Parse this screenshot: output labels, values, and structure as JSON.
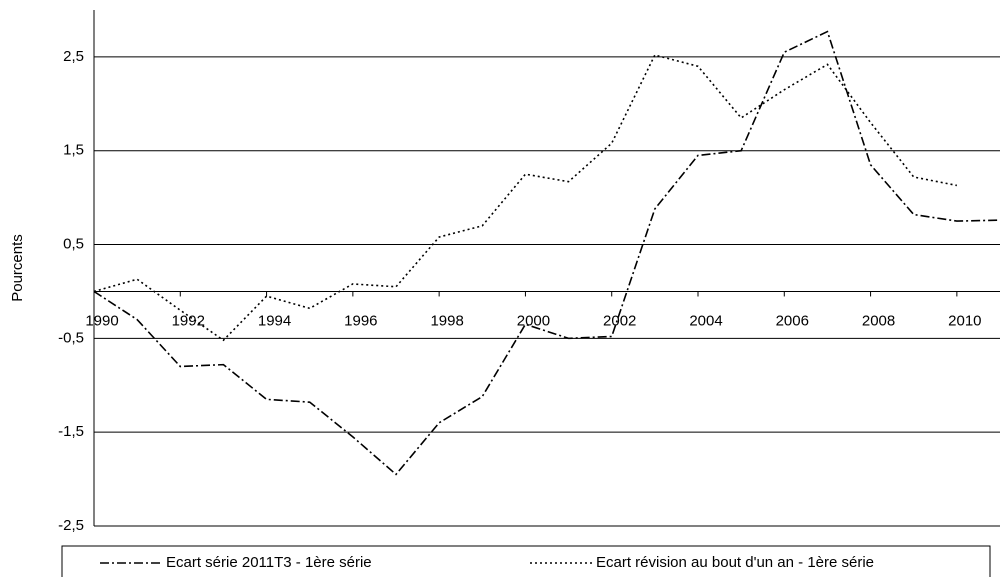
{
  "chart_data": {
    "type": "line",
    "y_label": "Pourcents",
    "x": [
      1990,
      1991,
      1992,
      1993,
      1994,
      1995,
      1996,
      1997,
      1998,
      1999,
      2000,
      2001,
      2002,
      2003,
      2004,
      2005,
      2006,
      2007,
      2008,
      2009,
      2010,
      2011
    ],
    "xlim": [
      1990,
      2011
    ],
    "xticks": [
      1990,
      1992,
      1994,
      1996,
      1998,
      2000,
      2002,
      2004,
      2006,
      2008,
      2010
    ],
    "ylim": [
      -2.5,
      3.0
    ],
    "yticks": [
      {
        "value": -2.5,
        "label": "-2,5"
      },
      {
        "value": -1.5,
        "label": "-1,5"
      },
      {
        "value": -0.5,
        "label": "-0,5"
      },
      {
        "value": 0.5,
        "label": "0,5"
      },
      {
        "value": 1.5,
        "label": "1,5"
      },
      {
        "value": 2.5,
        "label": "2,5"
      }
    ],
    "grid": true,
    "legend": "bottom",
    "series": [
      {
        "name": "Ecart série 2011T3 - 1ère série",
        "color": "#000000",
        "dash": "dashdot",
        "values": [
          0,
          -0.3,
          -0.8,
          -0.78,
          -1.15,
          -1.18,
          -1.55,
          -1.95,
          -1.4,
          -1.12,
          -0.35,
          -0.5,
          -0.48,
          0.88,
          1.45,
          1.5,
          2.55,
          2.77,
          1.35,
          0.82,
          0.75,
          0.76
        ]
      },
      {
        "name": "Ecart révision au bout d'un an - 1ère série",
        "color": "#000000",
        "dash": "dot",
        "values": [
          0,
          0.13,
          -0.2,
          -0.52,
          -0.05,
          -0.18,
          0.08,
          0.05,
          0.58,
          0.7,
          1.25,
          1.17,
          1.58,
          2.52,
          2.4,
          1.85,
          2.15,
          2.42,
          1.8,
          1.22,
          1.13,
          null
        ]
      }
    ]
  }
}
